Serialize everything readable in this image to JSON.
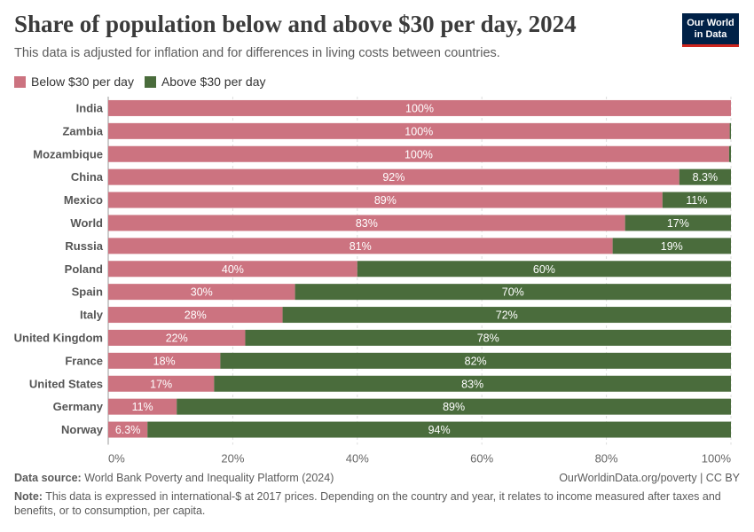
{
  "title": "Share of population below and above $30 per day, 2024",
  "subtitle": "This data is adjusted for inflation and for differences in living costs between countries.",
  "logo": {
    "line1": "Our World",
    "line2": "in Data"
  },
  "legend": [
    {
      "label": "Below $30 per day",
      "color": "#cc7380"
    },
    {
      "label": "Above $30 per day",
      "color": "#4a6c3c"
    }
  ],
  "chart_data": {
    "type": "bar",
    "orientation": "horizontal",
    "stacked": true,
    "categories": [
      "India",
      "Zambia",
      "Mozambique",
      "China",
      "Mexico",
      "World",
      "Russia",
      "Poland",
      "Spain",
      "Italy",
      "United Kingdom",
      "France",
      "United States",
      "Germany",
      "Norway"
    ],
    "series": [
      {
        "name": "Below $30 per day",
        "color": "#cc7380",
        "values": [
          100,
          99.8,
          99.7,
          91.7,
          89,
          83,
          81,
          40,
          30,
          28,
          22,
          18,
          17,
          11,
          6.3
        ],
        "labels": [
          "100%",
          "100%",
          "100%",
          "92%",
          "89%",
          "83%",
          "81%",
          "40%",
          "30%",
          "28%",
          "22%",
          "18%",
          "17%",
          "11%",
          "6.3%"
        ]
      },
      {
        "name": "Above $30 per day",
        "color": "#4a6c3c",
        "values": [
          0,
          0.2,
          0.3,
          8.3,
          11,
          17,
          19,
          60,
          70,
          72,
          78,
          82,
          83,
          89,
          93.7
        ],
        "labels": [
          "",
          "",
          "",
          "8.3%",
          "11%",
          "17%",
          "19%",
          "60%",
          "70%",
          "72%",
          "78%",
          "82%",
          "83%",
          "89%",
          "94%"
        ]
      }
    ],
    "xlim": [
      0,
      100
    ],
    "xticks": [
      0,
      20,
      40,
      60,
      80,
      100
    ],
    "xtick_labels": [
      "0%",
      "20%",
      "40%",
      "60%",
      "80%",
      "100%"
    ],
    "grid": true
  },
  "footer": {
    "source_label": "Data source:",
    "source_text": "World Bank Poverty and Inequality Platform (2024)",
    "url": "OurWorldinData.org/poverty | CC BY",
    "note_label": "Note:",
    "note_text": "This data is expressed in international-$ at 2017 prices. Depending on the country and year, it relates to income measured after taxes and benefits, or to consumption, per capita."
  }
}
